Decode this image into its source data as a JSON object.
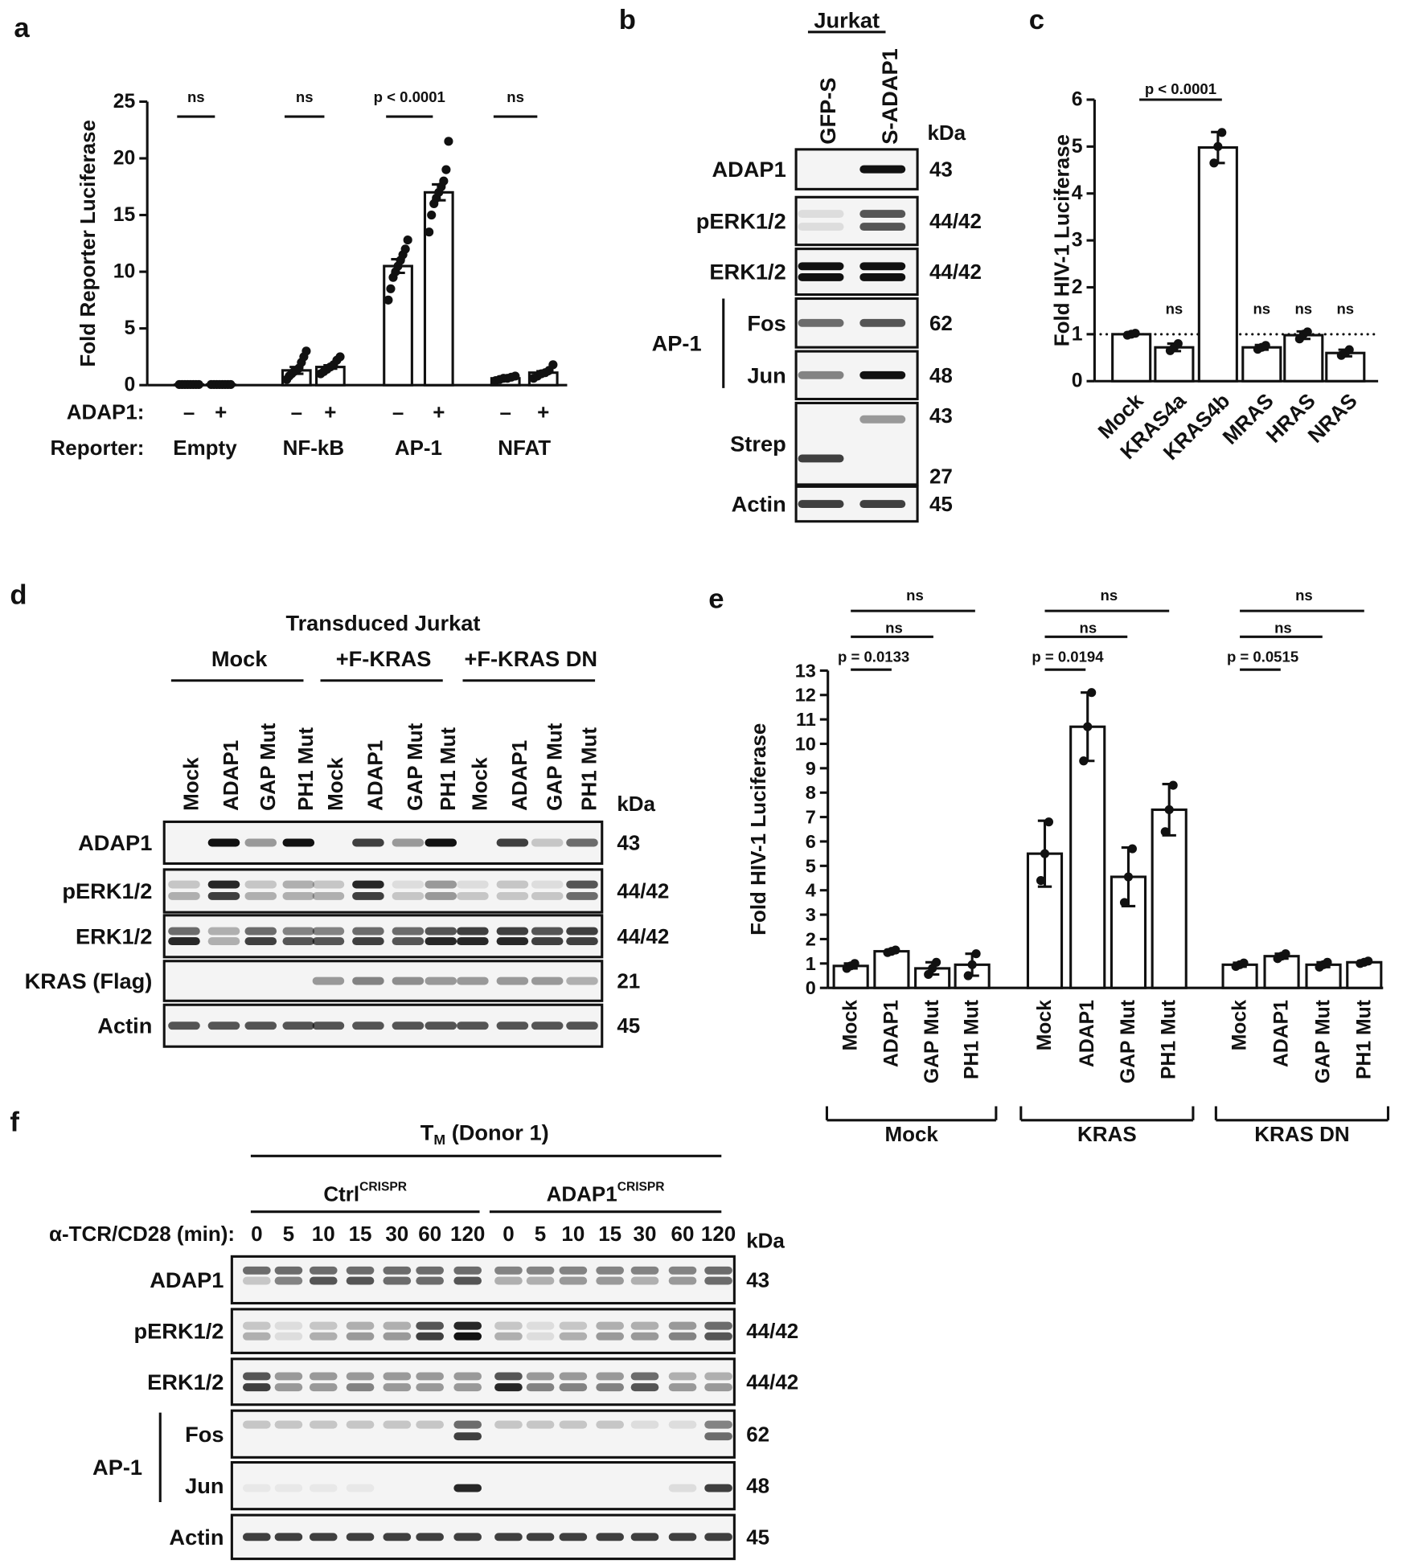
{
  "chart_data": [
    {
      "type": "bar",
      "panel": "a",
      "ylabel": "Fold Reporter Luciferase",
      "ylim": [
        0,
        25
      ],
      "yticks": [
        0,
        5,
        10,
        15,
        20,
        25
      ],
      "categories": [
        "–",
        "+",
        "–",
        "+",
        "–",
        "+",
        "–",
        "+"
      ],
      "groups": [
        "Empty",
        "NF-kB",
        "AP-1",
        "NFAT"
      ],
      "row_labels": [
        "ADAP1:",
        "Reporter:"
      ],
      "values": [
        0.05,
        0.05,
        1.3,
        1.6,
        10.5,
        17,
        0.6,
        1.1
      ],
      "errors": [
        0.02,
        0.02,
        0.3,
        0.15,
        0.6,
        0.7,
        0.05,
        0.12
      ],
      "points": [
        [
          0.05,
          0.05,
          0.05,
          0.05,
          0.05,
          0.05,
          0.05,
          0.05
        ],
        [
          0.05,
          0.05,
          0.05,
          0.05,
          0.05,
          0.05,
          0.05,
          0.05
        ],
        [
          0.5,
          0.8,
          1.0,
          1.2,
          1.3,
          1.5,
          2.0,
          2.5,
          3.0
        ],
        [
          1.0,
          1.2,
          1.4,
          1.6,
          1.8,
          2.2,
          2.5
        ],
        [
          7.5,
          8.5,
          9.5,
          10,
          10.5,
          11,
          11.5,
          12,
          12.8
        ],
        [
          13.5,
          15,
          16,
          16.5,
          17,
          17.5,
          18,
          19,
          21.5
        ],
        [
          0.4,
          0.5,
          0.6,
          0.6,
          0.7,
          0.8
        ],
        [
          0.6,
          0.8,
          1.0,
          1.1,
          1.3,
          1.8
        ]
      ],
      "annotations": [
        "ns",
        "ns",
        "p < 0.0001",
        "ns"
      ]
    },
    {
      "type": "bar",
      "panel": "c",
      "ylabel": "Fold HIV-1 Luciferase",
      "ylim": [
        0,
        6
      ],
      "yticks": [
        0,
        1,
        2,
        3,
        4,
        5,
        6
      ],
      "categories": [
        "Mock",
        "KRAS4a",
        "KRAS4b",
        "MRAS",
        "HRAS",
        "NRAS"
      ],
      "values": [
        1,
        0.72,
        4.98,
        0.72,
        0.98,
        0.6
      ],
      "errors": [
        0.03,
        0.08,
        0.33,
        0.05,
        0.08,
        0.07
      ],
      "points": [
        [
          0.98,
          1,
          1.02
        ],
        [
          0.65,
          0.72,
          0.8
        ],
        [
          4.65,
          5,
          5.3
        ],
        [
          0.68,
          0.72,
          0.76
        ],
        [
          0.9,
          1,
          1.05
        ],
        [
          0.55,
          0.6,
          0.67
        ]
      ],
      "reference_line": 1,
      "annotations": [
        "p < 0.0001",
        "ns",
        "ns",
        "ns",
        "ns"
      ]
    },
    {
      "type": "bar",
      "panel": "e",
      "ylabel": "Fold HIV-1 Luciferase",
      "ylim": [
        0,
        13
      ],
      "yticks": [
        0,
        1,
        2,
        3,
        4,
        5,
        6,
        7,
        8,
        9,
        10,
        11,
        12,
        13
      ],
      "categories": [
        "Mock",
        "ADAP1",
        "GAP Mut",
        "PH1 Mut",
        "Mock",
        "ADAP1",
        "GAP Mut",
        "PH1 Mut",
        "Mock",
        "ADAP1",
        "GAP Mut",
        "PH1 Mut"
      ],
      "groups": [
        "Mock",
        "KRAS",
        "KRAS DN"
      ],
      "values": [
        0.9,
        1.5,
        0.8,
        0.95,
        5.5,
        10.7,
        4.55,
        7.3,
        0.95,
        1.3,
        0.95,
        1.05
      ],
      "errors": [
        0.1,
        0.05,
        0.25,
        0.45,
        1.35,
        1.4,
        1.2,
        1.05,
        0.08,
        0.1,
        0.1,
        0.05
      ],
      "points": [
        [
          0.8,
          0.9,
          1.0
        ],
        [
          1.45,
          1.5,
          1.55
        ],
        [
          0.55,
          0.8,
          1.05
        ],
        [
          0.5,
          0.95,
          1.4
        ],
        [
          4.4,
          5.5,
          6.8
        ],
        [
          9.3,
          10.7,
          12.1
        ],
        [
          3.5,
          4.55,
          5.7
        ],
        [
          6.4,
          7.3,
          8.3
        ],
        [
          0.88,
          0.95,
          1.02
        ],
        [
          1.2,
          1.3,
          1.4
        ],
        [
          0.85,
          0.95,
          1.05
        ],
        [
          1.0,
          1.05,
          1.1
        ]
      ],
      "annotations": [
        [
          "ns",
          "ns",
          "p = 0.0133"
        ],
        [
          "ns",
          "ns",
          "p = 0.0194"
        ],
        [
          "ns",
          "ns",
          "p = 0.0515"
        ]
      ]
    }
  ],
  "blots": [
    {
      "panel": "b",
      "title": "Jurkat",
      "lanes": [
        "GFP-S",
        "S-ADAP1"
      ],
      "kda_header": "kDa",
      "bracket_label": "AP-1",
      "rows": [
        {
          "label": "ADAP1",
          "kda": [
            "43"
          ]
        },
        {
          "label": "pERK1/2",
          "kda": [
            "44/42"
          ]
        },
        {
          "label": "ERK1/2",
          "kda": [
            "44/42"
          ]
        },
        {
          "label": "Fos",
          "kda": [
            "62"
          ]
        },
        {
          "label": "Jun",
          "kda": [
            "48"
          ]
        },
        {
          "label": "Strep",
          "kda": [
            "43",
            "27"
          ]
        },
        {
          "label": "Actin",
          "kda": [
            "45"
          ]
        }
      ]
    },
    {
      "panel": "d",
      "title": "Transduced Jurkat",
      "groups": [
        "Mock",
        "+F-KRAS",
        "+F-KRAS DN"
      ],
      "lanes": [
        "Mock",
        "ADAP1",
        "GAP Mut",
        "PH1 Mut",
        "Mock",
        "ADAP1",
        "GAP Mut",
        "PH1 Mut",
        "Mock",
        "ADAP1",
        "GAP Mut",
        "PH1 Mut"
      ],
      "kda_header": "kDa",
      "rows": [
        {
          "label": "ADAP1",
          "kda": [
            "43"
          ]
        },
        {
          "label": "pERK1/2",
          "kda": [
            "44/42"
          ]
        },
        {
          "label": "ERK1/2",
          "kda": [
            "44/42"
          ]
        },
        {
          "label": "KRAS (Flag)",
          "kda": [
            "21"
          ]
        },
        {
          "label": "Actin",
          "kda": [
            "45"
          ]
        }
      ]
    },
    {
      "panel": "f",
      "title": {
        "text": "T",
        "sub": "M",
        "rest": " (Donor 1)"
      },
      "groups": [
        {
          "text": "Ctrl",
          "sup": "CRISPR"
        },
        {
          "text": "ADAP1",
          "sup": "CRISPR"
        }
      ],
      "lane_header": "α-TCR/CD28 (min):",
      "lanes": [
        "0",
        "5",
        "10",
        "15",
        "30",
        "60",
        "120",
        "0",
        "5",
        "10",
        "15",
        "30",
        "60",
        "120"
      ],
      "kda_header": "kDa",
      "bracket_label": "AP-1",
      "rows": [
        {
          "label": "ADAP1",
          "kda": [
            "43"
          ]
        },
        {
          "label": "pERK1/2",
          "kda": [
            "44/42"
          ]
        },
        {
          "label": "ERK1/2",
          "kda": [
            "44/42"
          ]
        },
        {
          "label": "Fos",
          "kda": [
            "62"
          ]
        },
        {
          "label": "Jun",
          "kda": [
            "48"
          ]
        },
        {
          "label": "Actin",
          "kda": [
            "45"
          ]
        }
      ]
    }
  ]
}
